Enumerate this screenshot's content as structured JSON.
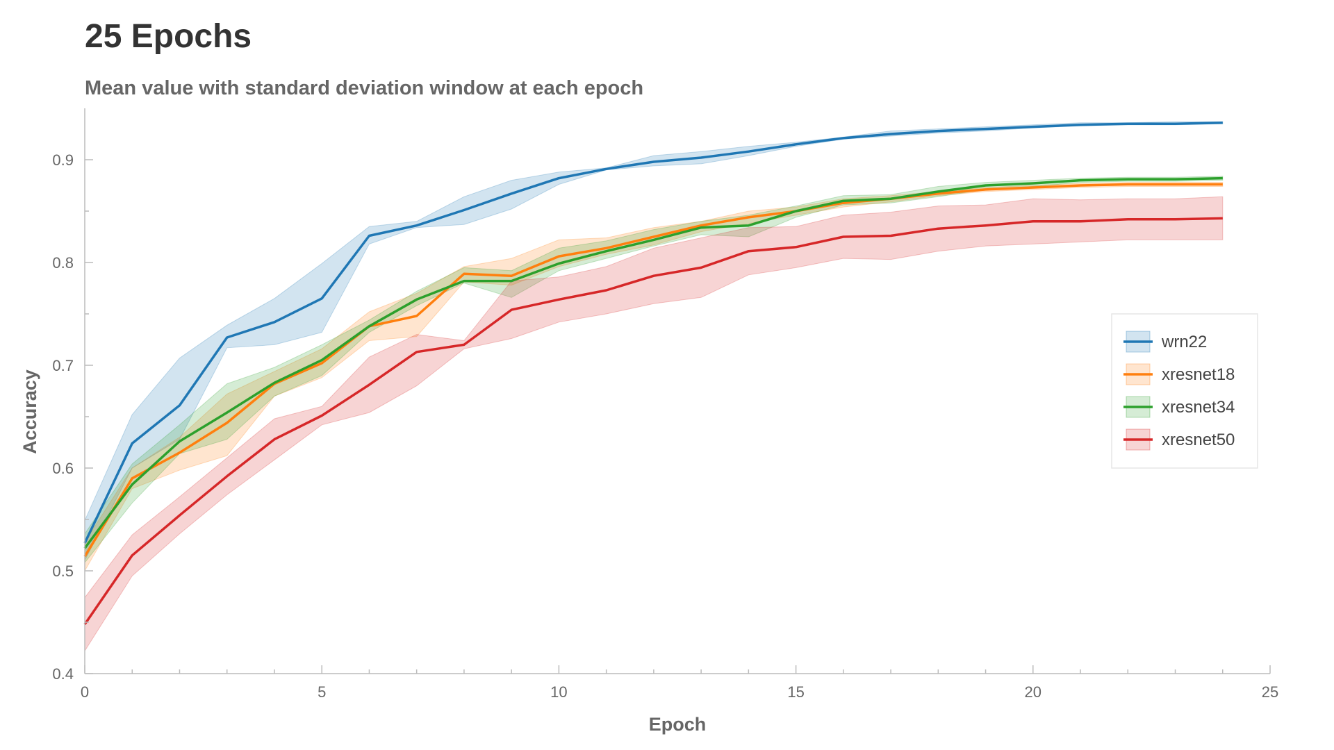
{
  "chart_data": {
    "type": "line",
    "title": "25 Epochs",
    "subtitle": "Mean value with standard deviation window at each epoch",
    "xlabel": "Epoch",
    "ylabel": "Accuracy",
    "xlim": [
      0,
      25
    ],
    "ylim": [
      0.4,
      0.95
    ],
    "x_ticks": [
      0,
      5,
      10,
      15,
      20,
      25
    ],
    "y_ticks": [
      0.4,
      0.5,
      0.6,
      0.7,
      0.8,
      0.9
    ],
    "grid": false,
    "legend_position": "right",
    "x": [
      0,
      1,
      2,
      3,
      4,
      5,
      6,
      7,
      8,
      9,
      10,
      11,
      12,
      13,
      14,
      15,
      16,
      17,
      18,
      19,
      20,
      21,
      22,
      23,
      24
    ],
    "series": [
      {
        "name": "wrn22",
        "color": "#1f77b4",
        "values": [
          0.527,
          0.624,
          0.661,
          0.727,
          0.742,
          0.765,
          0.826,
          0.836,
          0.851,
          0.867,
          0.882,
          0.891,
          0.898,
          0.902,
          0.908,
          0.915,
          0.921,
          0.925,
          0.928,
          0.93,
          0.932,
          0.934,
          0.935,
          0.935,
          0.936
        ],
        "lower": [
          0.51,
          0.6,
          0.628,
          0.717,
          0.72,
          0.732,
          0.818,
          0.834,
          0.837,
          0.852,
          0.876,
          0.89,
          0.894,
          0.896,
          0.904,
          0.913,
          0.92,
          0.923,
          0.926,
          0.928,
          0.931,
          0.933,
          0.934,
          0.934,
          0.935
        ],
        "upper": [
          0.549,
          0.652,
          0.707,
          0.739,
          0.765,
          0.799,
          0.835,
          0.84,
          0.864,
          0.88,
          0.888,
          0.892,
          0.904,
          0.908,
          0.913,
          0.917,
          0.922,
          0.928,
          0.93,
          0.932,
          0.934,
          0.936,
          0.936,
          0.937,
          0.937
        ]
      },
      {
        "name": "xresnet18",
        "color": "#ff7f0e",
        "values": [
          0.514,
          0.59,
          0.615,
          0.644,
          0.682,
          0.702,
          0.738,
          0.748,
          0.789,
          0.787,
          0.806,
          0.814,
          0.825,
          0.836,
          0.844,
          0.85,
          0.858,
          0.862,
          0.867,
          0.871,
          0.873,
          0.875,
          0.876,
          0.876,
          0.876
        ],
        "lower": [
          0.5,
          0.58,
          0.598,
          0.612,
          0.67,
          0.688,
          0.724,
          0.728,
          0.781,
          0.778,
          0.796,
          0.808,
          0.817,
          0.83,
          0.838,
          0.846,
          0.854,
          0.859,
          0.865,
          0.869,
          0.871,
          0.873,
          0.874,
          0.874,
          0.874
        ],
        "upper": [
          0.528,
          0.6,
          0.63,
          0.672,
          0.694,
          0.716,
          0.752,
          0.77,
          0.796,
          0.804,
          0.822,
          0.824,
          0.834,
          0.84,
          0.85,
          0.854,
          0.862,
          0.865,
          0.869,
          0.873,
          0.875,
          0.877,
          0.878,
          0.878,
          0.878
        ]
      },
      {
        "name": "xresnet34",
        "color": "#2ca02c",
        "values": [
          0.522,
          0.584,
          0.626,
          0.654,
          0.683,
          0.705,
          0.738,
          0.764,
          0.782,
          0.782,
          0.799,
          0.811,
          0.822,
          0.834,
          0.836,
          0.85,
          0.86,
          0.862,
          0.869,
          0.875,
          0.877,
          0.88,
          0.881,
          0.881,
          0.882
        ],
        "lower": [
          0.508,
          0.566,
          0.614,
          0.628,
          0.67,
          0.69,
          0.732,
          0.758,
          0.78,
          0.766,
          0.792,
          0.804,
          0.816,
          0.827,
          0.825,
          0.844,
          0.856,
          0.858,
          0.864,
          0.871,
          0.874,
          0.878,
          0.879,
          0.879,
          0.88
        ],
        "upper": [
          0.536,
          0.604,
          0.642,
          0.682,
          0.698,
          0.72,
          0.744,
          0.772,
          0.795,
          0.792,
          0.814,
          0.821,
          0.832,
          0.84,
          0.846,
          0.855,
          0.865,
          0.866,
          0.874,
          0.878,
          0.88,
          0.882,
          0.883,
          0.883,
          0.884
        ]
      },
      {
        "name": "xresnet50",
        "color": "#d62728",
        "values": [
          0.448,
          0.515,
          0.554,
          0.592,
          0.628,
          0.651,
          0.681,
          0.713,
          0.72,
          0.754,
          0.764,
          0.773,
          0.787,
          0.795,
          0.811,
          0.815,
          0.825,
          0.826,
          0.833,
          0.836,
          0.84,
          0.84,
          0.842,
          0.842,
          0.843
        ],
        "lower": [
          0.422,
          0.495,
          0.536,
          0.574,
          0.608,
          0.642,
          0.654,
          0.68,
          0.716,
          0.726,
          0.742,
          0.75,
          0.76,
          0.766,
          0.788,
          0.795,
          0.804,
          0.803,
          0.811,
          0.816,
          0.818,
          0.82,
          0.822,
          0.822,
          0.822
        ],
        "upper": [
          0.474,
          0.535,
          0.572,
          0.61,
          0.648,
          0.66,
          0.708,
          0.73,
          0.724,
          0.782,
          0.786,
          0.796,
          0.814,
          0.824,
          0.834,
          0.835,
          0.846,
          0.849,
          0.855,
          0.856,
          0.862,
          0.861,
          0.862,
          0.862,
          0.864
        ]
      }
    ]
  }
}
